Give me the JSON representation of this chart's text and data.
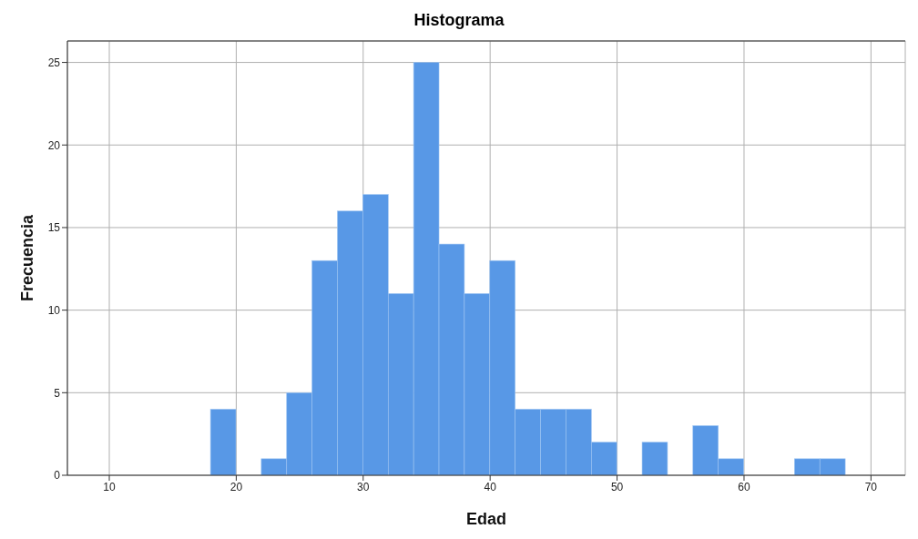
{
  "chart_data": {
    "type": "histogram",
    "title": "Histograma",
    "xlabel": "Edad",
    "ylabel": "Frecuencia",
    "bins": [
      18,
      20,
      22,
      24,
      26,
      28,
      30,
      32,
      34,
      36,
      38,
      40,
      42,
      44,
      46,
      48,
      50,
      52,
      54,
      56,
      58,
      60,
      62,
      64,
      66,
      68
    ],
    "values": [
      4,
      0,
      1,
      5,
      13,
      16,
      17,
      11,
      25,
      14,
      11,
      13,
      4,
      4,
      4,
      2,
      0,
      2,
      0,
      3,
      1,
      0,
      0,
      1,
      1
    ],
    "color": "#5898e6",
    "xlim": [
      6.7,
      72.7
    ],
    "xticks": [
      10,
      20,
      30,
      40,
      50,
      60,
      70
    ],
    "ylim": [
      0,
      26.3
    ],
    "yticks": [
      0,
      5,
      10,
      15,
      20,
      25
    ],
    "grid": true
  }
}
